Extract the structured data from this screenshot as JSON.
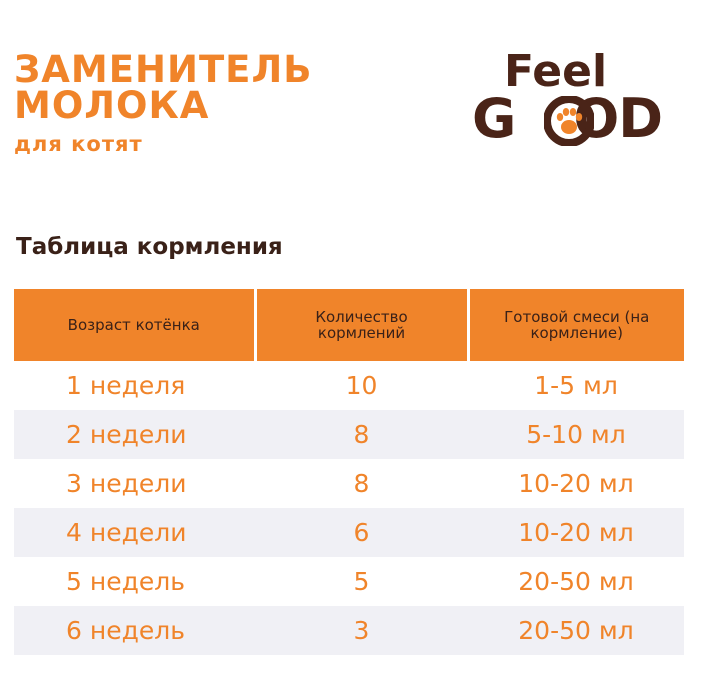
{
  "product": {
    "title_line1": "ЗАМЕНИТЕЛЬ",
    "title_line2": "МОЛОКА",
    "subtitle": "для котят"
  },
  "brand": {
    "word1": "Feel",
    "word2_left": "G",
    "word2_right": "OD",
    "icon": "paw-icon"
  },
  "table": {
    "title": "Таблица кормления",
    "headers": [
      "Возраст котёнка",
      "Количество кормлений",
      "Готовой смеси (на кормление)"
    ],
    "rows": [
      [
        "1 неделя",
        "10",
        "1-5 мл"
      ],
      [
        "2 недели",
        "8",
        "5-10 мл"
      ],
      [
        "3 недели",
        "8",
        "10-20 мл"
      ],
      [
        "4 недели",
        "6",
        "10-20 мл"
      ],
      [
        "5 недель",
        "5",
        "20-50 мл"
      ],
      [
        "6 недель",
        "3",
        "20-50 мл"
      ]
    ]
  },
  "colors": {
    "accent": "#f0842a",
    "brand_brown": "#4a2418",
    "stripe": "#f0f0f5"
  }
}
